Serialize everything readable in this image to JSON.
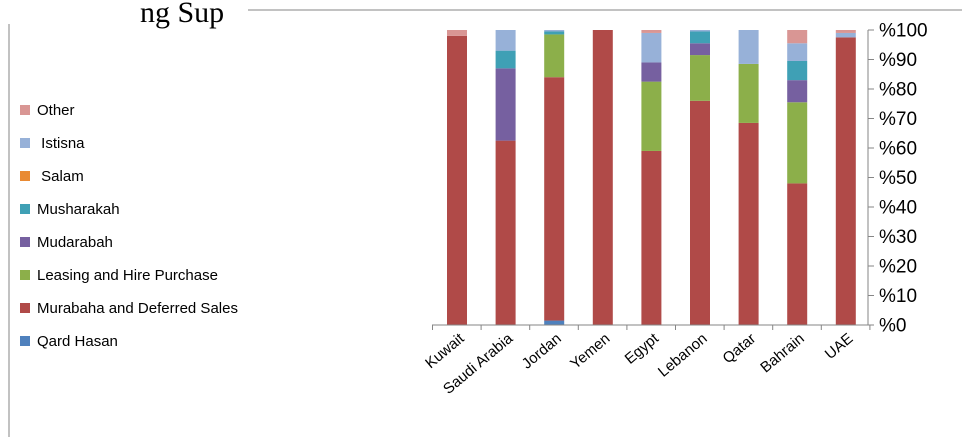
{
  "caption_fragment": "ng Sup",
  "chart_data": {
    "type": "bar",
    "stacked": true,
    "categories": [
      "Kuwait",
      "Saudi Arabia",
      "Jordan",
      "Yemen",
      "Egypt",
      "Lebanon",
      "Qatar",
      "Bahrain",
      "UAE"
    ],
    "ylim": [
      0,
      100
    ],
    "yticks": [
      "%0",
      "%10",
      "%20",
      "%30",
      "%40",
      "%50",
      "%60",
      "%70",
      "%80",
      "%90",
      "%100"
    ],
    "legend_position": "left",
    "grid": false,
    "series": [
      {
        "name": "Qard Hasan",
        "color": "#4F81BD",
        "values": [
          0,
          0,
          1.5,
          0,
          0,
          0,
          0,
          0,
          0
        ]
      },
      {
        "name": "Murabaha and Deferred Sales",
        "color": "#B04A48",
        "values": [
          98,
          62.5,
          82.5,
          100,
          59,
          76,
          68.5,
          48,
          97.5
        ]
      },
      {
        "name": "Leasing and Hire Purchase",
        "color": "#8CAF4A",
        "values": [
          0,
          0,
          14.5,
          0,
          23.5,
          15.5,
          20,
          27.5,
          0
        ]
      },
      {
        "name": "Mudarabah",
        "color": "#7660A0",
        "values": [
          0,
          24.5,
          0,
          0,
          6.5,
          4,
          0,
          7.5,
          0
        ]
      },
      {
        "name": "Musharakah",
        "color": "#3FA0B5",
        "values": [
          0,
          6,
          1,
          0,
          0,
          4,
          0,
          6.5,
          0
        ]
      },
      {
        "name": "Salam",
        "color": "#E98A33",
        "values": [
          0,
          0,
          0,
          0,
          0,
          0,
          0,
          0,
          0
        ]
      },
      {
        "name": " Istisna",
        "color": "#97B1D8",
        "values": [
          0,
          7,
          0.5,
          0,
          10,
          0.5,
          11.5,
          6,
          1.5
        ]
      },
      {
        "name": "Other",
        "color": "#D99694",
        "values": [
          2,
          0,
          0,
          0,
          1,
          0,
          0,
          4.5,
          1
        ]
      }
    ],
    "legend_order": [
      "Other",
      " Istisna",
      " Salam",
      "Musharakah",
      "Mudarabah",
      "Leasing and Hire Purchase",
      "Murabaha and Deferred Sales",
      "Qard Hasan"
    ]
  }
}
